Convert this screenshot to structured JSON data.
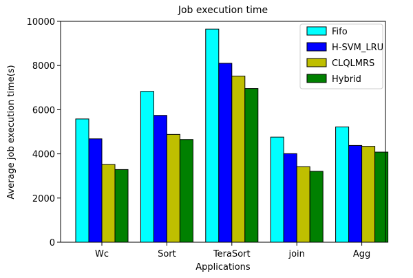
{
  "chart_data": {
    "type": "bar",
    "title": "Job execution time",
    "xlabel": "Applications",
    "ylabel": "Average job execution time(s)",
    "ylim": [
      0,
      10000
    ],
    "yticks": [
      "0",
      "2000",
      "4000",
      "6000",
      "8000",
      "10000"
    ],
    "categories": [
      "Wc",
      "Sort",
      "TeraSort",
      "join",
      "Agg"
    ],
    "series": [
      {
        "name": "Fifo",
        "color": "#00ffff",
        "values": [
          5580,
          6830,
          9650,
          4760,
          5220
        ]
      },
      {
        "name": "H-SVM_LRU",
        "color": "#0000ff",
        "values": [
          4680,
          5740,
          8100,
          4010,
          4380
        ]
      },
      {
        "name": "CLQLMRS",
        "color": "#bfbf00",
        "values": [
          3520,
          4880,
          7520,
          3420,
          4340
        ]
      },
      {
        "name": "Hybrid",
        "color": "#008000",
        "values": [
          3290,
          4650,
          6960,
          3210,
          4080
        ]
      }
    ],
    "grid": false,
    "legend_position": "top-right"
  }
}
